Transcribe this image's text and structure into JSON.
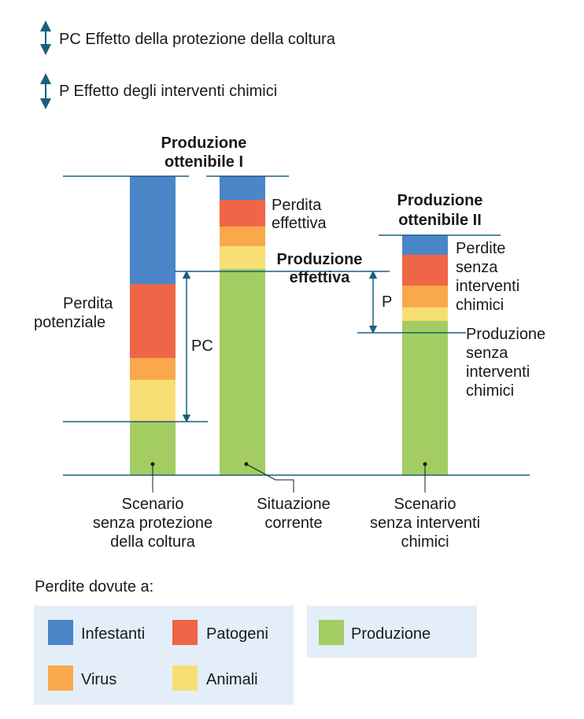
{
  "colors": {
    "infestanti": "#4a86c8",
    "patogeni": "#ef6548",
    "virus": "#f9a94b",
    "animali": "#f7df75",
    "produzione": "#a3cd62",
    "line": "#1b5f7e",
    "legend_bg": "#e3eef9"
  },
  "top_legend": [
    {
      "label": "PC Effetto della protezione della coltura"
    },
    {
      "label": "P Effetto degli interventi chimici"
    }
  ],
  "headings": {
    "prod1": [
      "Produzione",
      "ottenibile I"
    ],
    "prod2": [
      "Produzione",
      "ottenibile II"
    ],
    "effettiva": [
      "Produzione",
      "effettiva"
    ]
  },
  "annotations": {
    "perdita_potenziale": [
      "Perdita",
      "potenziale"
    ],
    "perdita_effettiva": [
      "Perdita",
      "effettiva"
    ],
    "perdite_senza": [
      "Perdite",
      "senza",
      "interventi",
      "chimici"
    ],
    "prod_senza": [
      "Produzione",
      "senza",
      "interventi",
      "chimici"
    ],
    "pc": "PC",
    "p": "P"
  },
  "scenarios": [
    {
      "label": [
        "Scenario",
        "senza protezione",
        "della coltura"
      ],
      "segments": [
        {
          "category": "infestanti",
          "share": 0.361
        },
        {
          "category": "patogeni",
          "share": 0.247
        },
        {
          "category": "virus",
          "share": 0.073
        },
        {
          "category": "animali",
          "share": 0.139
        },
        {
          "category": "produzione",
          "share": 0.18
        }
      ]
    },
    {
      "label": [
        "Situazione",
        "corrente"
      ],
      "segments": [
        {
          "category": "infestanti",
          "share": 0.079
        },
        {
          "category": "patogeni",
          "share": 0.089
        },
        {
          "category": "virus",
          "share": 0.066
        },
        {
          "category": "animali",
          "share": 0.076
        },
        {
          "category": "produzione",
          "share": 0.69
        }
      ]
    },
    {
      "label": [
        "Scenario",
        "senza interventi",
        "chimici"
      ],
      "segments": [
        {
          "category": "infestanti",
          "share": 0.081
        },
        {
          "category": "patogeni",
          "share": 0.129
        },
        {
          "category": "virus",
          "share": 0.091
        },
        {
          "category": "animali",
          "share": 0.056
        },
        {
          "category": "produzione",
          "share": 0.643
        }
      ]
    }
  ],
  "legend": {
    "title": "Perdite dovute a:",
    "items": [
      {
        "category": "infestanti",
        "label": "Infestanti"
      },
      {
        "category": "patogeni",
        "label": "Patogeni"
      },
      {
        "category": "virus",
        "label": "Virus"
      },
      {
        "category": "animali",
        "label": "Animali"
      },
      {
        "category": "produzione",
        "label": "Produzione"
      }
    ]
  }
}
